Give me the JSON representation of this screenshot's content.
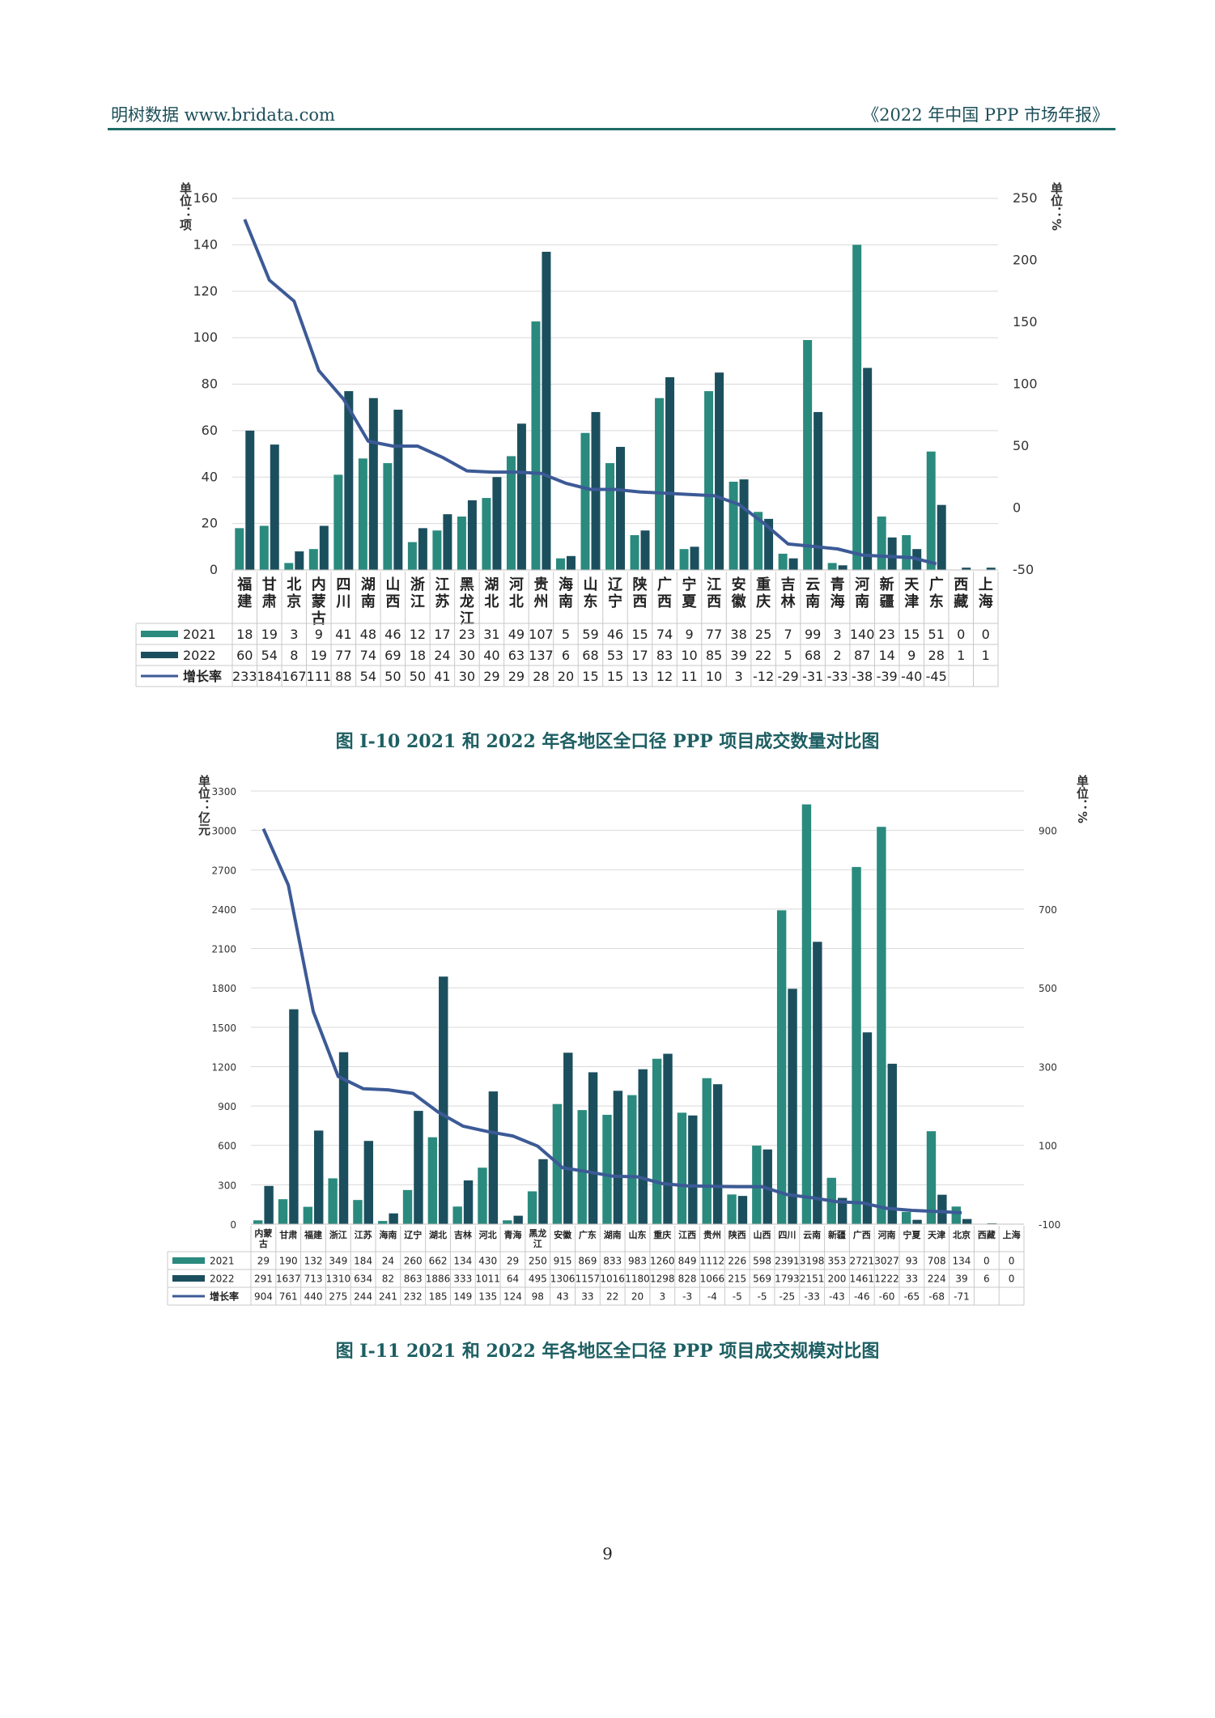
{
  "header": {
    "left": "明树数据 www.bridata.com",
    "right": "《2022 年中国 PPP 市场年报》"
  },
  "captions": {
    "figure1": "图 I-10 2021 和 2022 年各地区全口径 PPP 项目成交数量对比图",
    "figure2": "图 I-11 2021 和 2022 年各地区全口径 PPP 项目成交规模对比图"
  },
  "page_number": "9",
  "colors": {
    "series2021": "#2a8a7e",
    "series2022": "#1c4f5e",
    "growth": "#3c5a96"
  },
  "chart_data": [
    {
      "type": "bar",
      "title": "",
      "left_unit": "单位：项",
      "right_unit": "单位：%",
      "ylim": [
        0,
        160
      ],
      "yticks": [
        0,
        20,
        40,
        60,
        80,
        100,
        120,
        140,
        160
      ],
      "y2lim": [
        -50,
        250
      ],
      "y2ticks": [
        -50,
        0,
        50,
        100,
        150,
        200,
        250
      ],
      "categories": [
        "福建",
        "甘肃",
        "北京",
        "内蒙古",
        "四川",
        "湖南",
        "山西",
        "浙江",
        "江苏",
        "黑龙江",
        "湖北",
        "河北",
        "贵州",
        "海南",
        "山东",
        "辽宁",
        "陕西",
        "广西",
        "宁夏",
        "江西",
        "安徽",
        "重庆",
        "吉林",
        "云南",
        "青海",
        "河南",
        "新疆",
        "天津",
        "广东",
        "西藏",
        "上海"
      ],
      "series": [
        {
          "name": "2021",
          "values": [
            18,
            19,
            3,
            9,
            41,
            48,
            46,
            12,
            17,
            23,
            31,
            49,
            107,
            5,
            59,
            46,
            15,
            74,
            9,
            77,
            38,
            25,
            7,
            99,
            3,
            140,
            23,
            15,
            51,
            0,
            0
          ]
        },
        {
          "name": "2022",
          "values": [
            60,
            54,
            8,
            19,
            77,
            74,
            69,
            18,
            24,
            30,
            40,
            63,
            137,
            6,
            68,
            53,
            17,
            83,
            10,
            85,
            39,
            22,
            5,
            68,
            2,
            87,
            14,
            9,
            28,
            1,
            1
          ]
        }
      ],
      "growth": {
        "name": "增长率",
        "values": [
          233,
          184,
          167,
          111,
          88,
          54,
          50,
          50,
          41,
          30,
          29,
          29,
          28,
          20,
          15,
          15,
          13,
          12,
          11,
          10,
          3,
          -12,
          -29,
          -31,
          -33,
          -38,
          -39,
          -40,
          -45,
          null,
          null
        ]
      },
      "legend": "bottom-table"
    },
    {
      "type": "bar",
      "title": "",
      "left_unit": "单位：亿元",
      "right_unit": "单位：%",
      "ylim": [
        0,
        3300
      ],
      "yticks": [
        0,
        300,
        600,
        900,
        1200,
        1500,
        1800,
        2100,
        2400,
        2700,
        3000,
        3300
      ],
      "y2lim": [
        -100,
        1000
      ],
      "y2ticks": [
        -100,
        100,
        300,
        500,
        700,
        900
      ],
      "categories": [
        "内蒙古",
        "甘肃",
        "福建",
        "浙江",
        "江苏",
        "海南",
        "辽宁",
        "湖北",
        "吉林",
        "河北",
        "青海",
        "黑龙江",
        "安徽",
        "广东",
        "湖南",
        "山东",
        "重庆",
        "江西",
        "贵州",
        "陕西",
        "山西",
        "四川",
        "云南",
        "新疆",
        "广西",
        "河南",
        "宁夏",
        "天津",
        "北京",
        "西藏",
        "上海"
      ],
      "series": [
        {
          "name": "2021",
          "values": [
            29,
            190,
            132,
            349,
            184,
            24,
            260,
            662,
            134,
            430,
            29,
            250,
            915,
            869,
            833,
            983,
            1260,
            849,
            1112,
            226,
            598,
            2391,
            3198,
            353,
            2721,
            3027,
            93,
            708,
            134,
            0,
            0
          ]
        },
        {
          "name": "2022",
          "values": [
            291,
            1637,
            713,
            1310,
            634,
            82,
            863,
            1886,
            333,
            1011,
            64,
            495,
            1306,
            1157,
            1016,
            1180,
            1298,
            828,
            1066,
            215,
            569,
            1793,
            2151,
            200,
            1461,
            1222,
            33,
            224,
            39,
            6,
            0
          ]
        }
      ],
      "growth": {
        "name": "增长率",
        "values": [
          904,
          761,
          440,
          275,
          244,
          241,
          232,
          185,
          149,
          135,
          124,
          98,
          43,
          33,
          22,
          20,
          3,
          -3,
          -4,
          -5,
          -5,
          -25,
          -33,
          -43,
          -46,
          -60,
          -65,
          -68,
          -71,
          null,
          null
        ]
      },
      "legend": "bottom-table"
    }
  ]
}
